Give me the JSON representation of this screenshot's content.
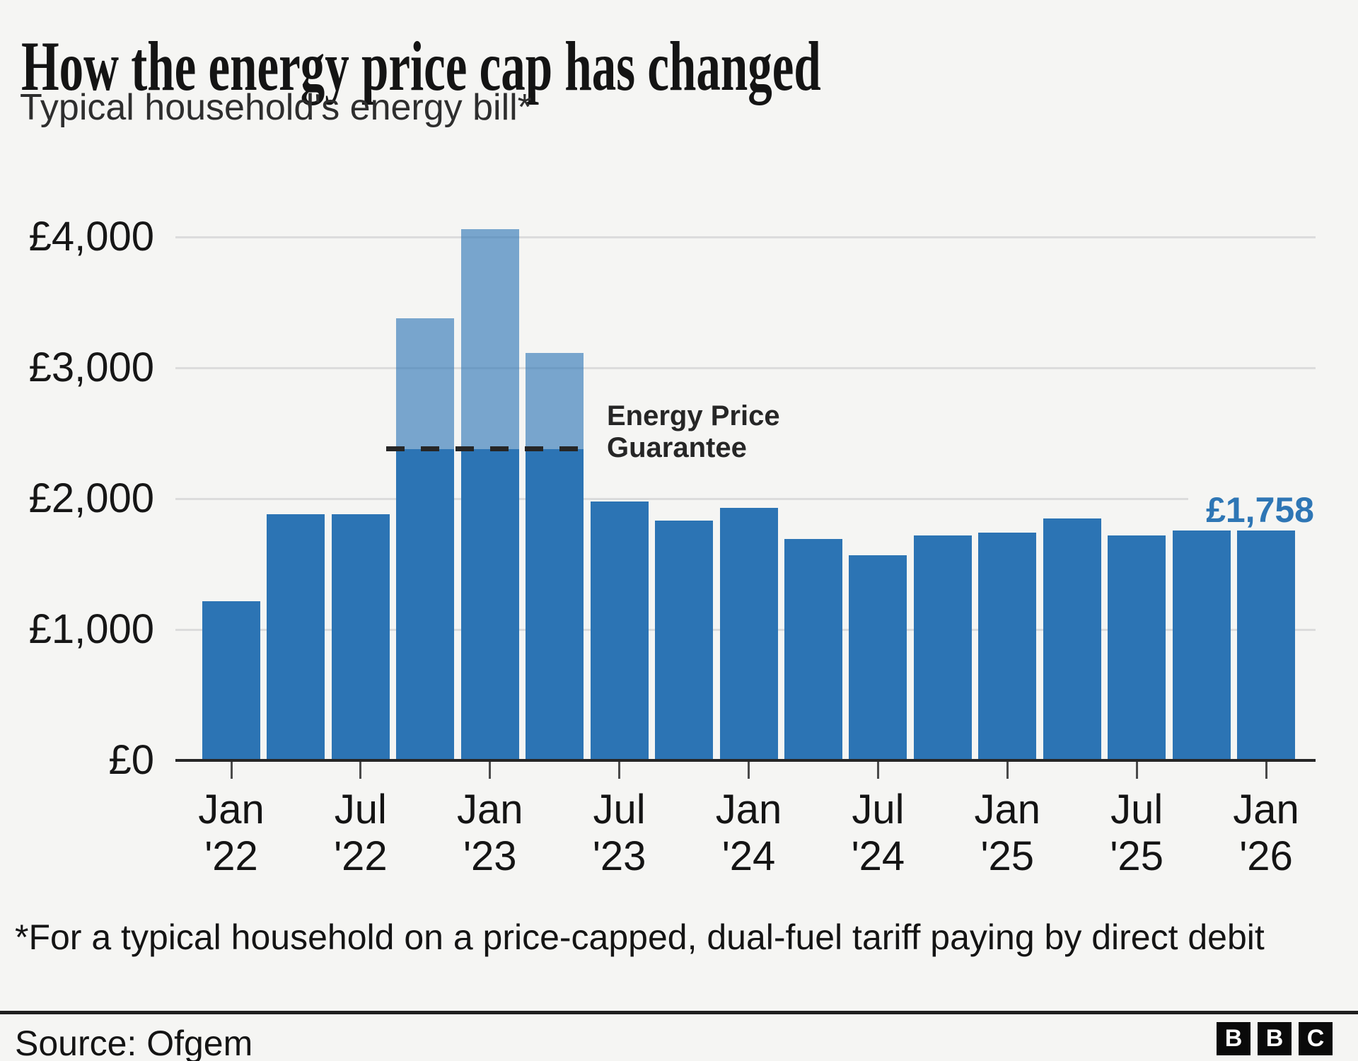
{
  "header": {
    "title": "How the energy price cap has changed",
    "subtitle": "Typical household's energy bill*"
  },
  "chart_data": {
    "type": "bar",
    "title": "How the energy price cap has changed",
    "subtitle": "Typical household's energy bill*",
    "ylabel": "",
    "xlabel": "",
    "ylim": [
      0,
      4000
    ],
    "grid": "horizontal",
    "y_ticks": [
      {
        "value": 0,
        "label": "£0"
      },
      {
        "value": 1000,
        "label": "£1,000"
      },
      {
        "value": 2000,
        "label": "£2,000"
      },
      {
        "value": 3000,
        "label": "£3,000"
      },
      {
        "value": 4000,
        "label": "£4,000"
      }
    ],
    "x_tick_labels": [
      {
        "line1": "Jan",
        "line2": "'22",
        "bar_index": 0
      },
      {
        "line1": "Jul",
        "line2": "'22",
        "bar_index": 2
      },
      {
        "line1": "Jan",
        "line2": "'23",
        "bar_index": 4
      },
      {
        "line1": "Jul",
        "line2": "'23",
        "bar_index": 6
      },
      {
        "line1": "Jan",
        "line2": "'24",
        "bar_index": 8
      },
      {
        "line1": "Jul",
        "line2": "'24",
        "bar_index": 10
      },
      {
        "line1": "Jan",
        "line2": "'25",
        "bar_index": 12
      },
      {
        "line1": "Jul",
        "line2": "'25",
        "bar_index": 14
      },
      {
        "line1": "Jan",
        "line2": "'26",
        "bar_index": 16
      }
    ],
    "bars": [
      {
        "period": "Jan '22",
        "value": 1216
      },
      {
        "period": "Apr '22",
        "value": 1880
      },
      {
        "period": "Jul '22",
        "value": 1880
      },
      {
        "period": "Oct '22",
        "value": 3381,
        "capped_value": 2380
      },
      {
        "period": "Jan '23",
        "value": 4059,
        "capped_value": 2380
      },
      {
        "period": "Apr '23",
        "value": 3116,
        "capped_value": 2380
      },
      {
        "period": "Jul '23",
        "value": 1976
      },
      {
        "period": "Oct '23",
        "value": 1834
      },
      {
        "period": "Jan '24",
        "value": 1928
      },
      {
        "period": "Apr '24",
        "value": 1690
      },
      {
        "period": "Jul '24",
        "value": 1568
      },
      {
        "period": "Oct '24",
        "value": 1717
      },
      {
        "period": "Jan '25",
        "value": 1738
      },
      {
        "period": "Apr '25",
        "value": 1849
      },
      {
        "period": "Jul '25",
        "value": 1720
      },
      {
        "period": "Oct '25",
        "value": 1755
      },
      {
        "period": "Jan '26",
        "value": 1758
      }
    ],
    "annotation": {
      "line1": "Energy Price",
      "line2": "Guarantee",
      "value": 2380
    },
    "last_value_label": "£1,758",
    "legend": "none",
    "colors": {
      "bar": "#2c74b4",
      "bar_above_guarantee": "rgba(44,116,180,0.62)",
      "last_value_label": "#2e76b5",
      "guarantee_line": "#262626"
    }
  },
  "footnote": "*For a typical household on a price-capped, dual-fuel tariff paying by direct debit",
  "source": "Source: Ofgem",
  "logo": {
    "letters": [
      "B",
      "B",
      "C"
    ]
  }
}
